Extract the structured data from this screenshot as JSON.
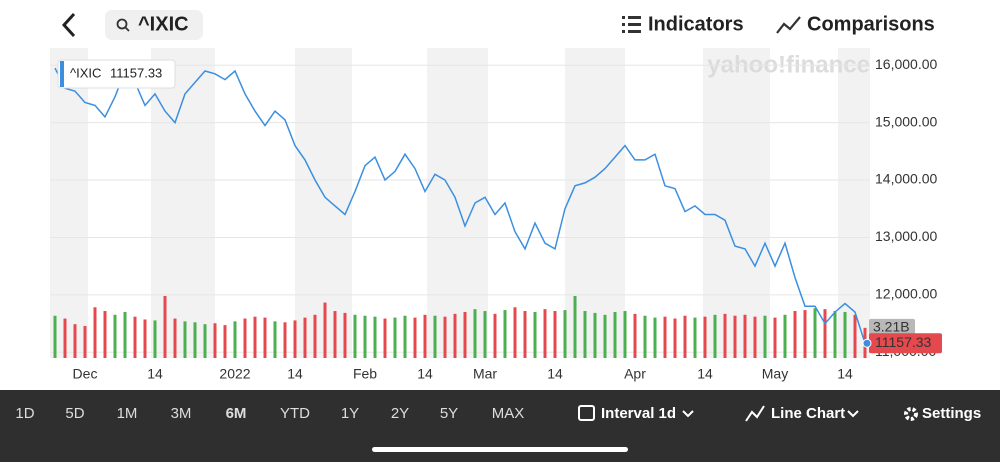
{
  "ui": {
    "search": "^IXIC",
    "indicators": "Indicators",
    "comparisons": "Comparisons",
    "watermark": "yahoo!finance",
    "ranges": [
      "1D",
      "5D",
      "1M",
      "3M",
      "6M",
      "YTD",
      "1Y",
      "2Y",
      "5Y",
      "MAX"
    ],
    "interval": "Interval 1d",
    "chart_style": "Line Chart",
    "settings": "Settings"
  },
  "chart_data": {
    "type": "line",
    "categories": [
      null,
      null,
      null,
      "Dec",
      null,
      null,
      null,
      null,
      null,
      null,
      "14",
      null,
      null,
      null,
      null,
      null,
      null,
      null,
      "2022",
      null,
      null,
      null,
      null,
      null,
      "14",
      null,
      null,
      null,
      null,
      null,
      null,
      "Feb",
      null,
      null,
      null,
      null,
      null,
      "14",
      null,
      null,
      null,
      null,
      null,
      "Mar",
      null,
      null,
      null,
      null,
      null,
      null,
      "14",
      null,
      null,
      null,
      null,
      null,
      null,
      null,
      "Apr",
      null,
      null,
      null,
      null,
      null,
      null,
      "14",
      null,
      null,
      null,
      null,
      null,
      null,
      "May",
      null,
      null,
      null,
      null,
      null,
      null,
      "14",
      null,
      null
    ],
    "series": [
      {
        "name": "^IXIC",
        "color": "#3b8fe0",
        "values": [
          15950,
          15600,
          15550,
          15350,
          15300,
          15100,
          15450,
          15900,
          15700,
          15300,
          15500,
          15200,
          15000,
          15500,
          15700,
          15900,
          15850,
          15750,
          15900,
          15500,
          15200,
          14950,
          15200,
          15050,
          14600,
          14350,
          14000,
          13700,
          13550,
          13400,
          13800,
          14250,
          14400,
          14000,
          14150,
          14450,
          14200,
          13800,
          14100,
          14000,
          13700,
          13200,
          13600,
          13700,
          13400,
          13600,
          13100,
          12800,
          13250,
          12900,
          12800,
          13500,
          13900,
          13950,
          14050,
          14200,
          14400,
          14600,
          14350,
          14350,
          14450,
          13900,
          13850,
          13450,
          13550,
          13400,
          13400,
          13300,
          12850,
          12800,
          12500,
          12900,
          12500,
          12900,
          12300,
          11800,
          11800,
          11500,
          11700,
          11850,
          11700,
          11157.33
        ]
      },
      {
        "name": "Volume",
        "type": "bar",
        "axis": "y2",
        "up_color": "#4caf50",
        "down_color": "#e5484d",
        "values": [
          4.5,
          4.2,
          3.6,
          3.4,
          5.4,
          5.0,
          4.6,
          4.9,
          4.4,
          4.1,
          4.0,
          6.6,
          4.2,
          3.9,
          3.8,
          3.6,
          3.7,
          3.5,
          3.9,
          4.2,
          4.4,
          4.3,
          3.9,
          3.8,
          4.0,
          4.3,
          4.6,
          5.9,
          5.0,
          4.8,
          4.6,
          4.5,
          4.4,
          4.2,
          4.3,
          4.5,
          4.3,
          4.6,
          4.5,
          4.4,
          4.7,
          4.9,
          5.2,
          5.0,
          4.7,
          5.1,
          5.4,
          5.0,
          4.9,
          5.2,
          5.0,
          5.1,
          6.6,
          5.0,
          4.8,
          4.6,
          4.9,
          5.0,
          4.7,
          4.5,
          4.3,
          4.4,
          4.2,
          4.5,
          4.3,
          4.4,
          4.6,
          4.7,
          4.5,
          4.6,
          4.4,
          4.5,
          4.3,
          4.6,
          5.0,
          5.1,
          5.3,
          5.2,
          5.0,
          4.9,
          4.6,
          3.21
        ],
        "value_labels": [
          null,
          null,
          null,
          null,
          null,
          null,
          null,
          null,
          null,
          null,
          null,
          null,
          null,
          null,
          null,
          null,
          null,
          null,
          null,
          null,
          null,
          null,
          null,
          null,
          null,
          null,
          null,
          null,
          null,
          null,
          null,
          null,
          null,
          null,
          null,
          null,
          null,
          null,
          null,
          null,
          null,
          null,
          null,
          null,
          null,
          null,
          null,
          null,
          null,
          null,
          null,
          null,
          null,
          null,
          null,
          null,
          null,
          null,
          null,
          null,
          null,
          null,
          null,
          null,
          null,
          null,
          null,
          null,
          null,
          null,
          null,
          null,
          null,
          null,
          null,
          null,
          null,
          null,
          null,
          null,
          null,
          "3.21B"
        ]
      }
    ],
    "ylim": [
      10900,
      16300
    ],
    "yticks": [
      {
        "value": 11000,
        "label": "11,000.00"
      },
      {
        "value": 12000,
        "label": "12,000.00"
      },
      {
        "value": 13000,
        "label": "13,000.00"
      },
      {
        "value": 14000,
        "label": "14,000.00"
      },
      {
        "value": 15000,
        "label": "15,000.00"
      },
      {
        "value": 16000,
        "label": "16,000.00"
      }
    ],
    "y2lim": [
      0,
      33
    ],
    "grid": true
  }
}
